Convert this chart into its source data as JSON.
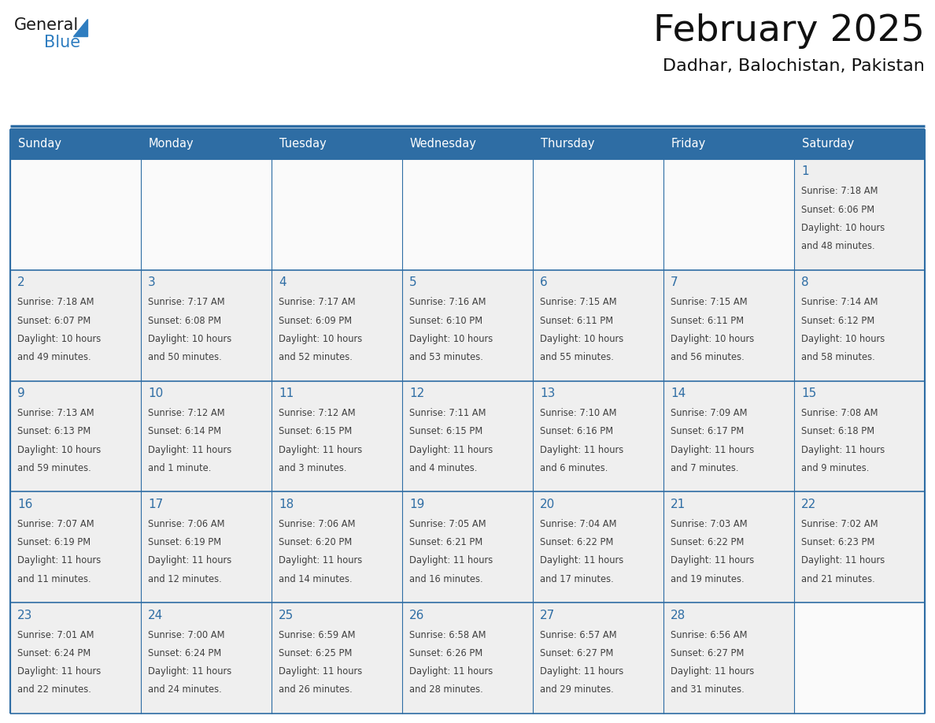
{
  "title": "February 2025",
  "subtitle": "Dadhar, Balochistan, Pakistan",
  "header_bg": "#2E6DA4",
  "header_text": "#FFFFFF",
  "cell_bg": "#EFEFEF",
  "empty_cell_bg": "#FAFAFA",
  "border_color": "#2E6DA4",
  "text_color": "#404040",
  "day_num_color": "#2E6DA4",
  "logo_text_color": "#1a1a1a",
  "logo_blue_color": "#2E7DC0",
  "days_of_week": [
    "Sunday",
    "Monday",
    "Tuesday",
    "Wednesday",
    "Thursday",
    "Friday",
    "Saturday"
  ],
  "calendar_data": [
    [
      null,
      null,
      null,
      null,
      null,
      null,
      {
        "day": "1",
        "sunrise": "7:18 AM",
        "sunset": "6:06 PM",
        "daylight": "10 hours",
        "daylight2": "and 48 minutes."
      }
    ],
    [
      {
        "day": "2",
        "sunrise": "7:18 AM",
        "sunset": "6:07 PM",
        "daylight": "10 hours",
        "daylight2": "and 49 minutes."
      },
      {
        "day": "3",
        "sunrise": "7:17 AM",
        "sunset": "6:08 PM",
        "daylight": "10 hours",
        "daylight2": "and 50 minutes."
      },
      {
        "day": "4",
        "sunrise": "7:17 AM",
        "sunset": "6:09 PM",
        "daylight": "10 hours",
        "daylight2": "and 52 minutes."
      },
      {
        "day": "5",
        "sunrise": "7:16 AM",
        "sunset": "6:10 PM",
        "daylight": "10 hours",
        "daylight2": "and 53 minutes."
      },
      {
        "day": "6",
        "sunrise": "7:15 AM",
        "sunset": "6:11 PM",
        "daylight": "10 hours",
        "daylight2": "and 55 minutes."
      },
      {
        "day": "7",
        "sunrise": "7:15 AM",
        "sunset": "6:11 PM",
        "daylight": "10 hours",
        "daylight2": "and 56 minutes."
      },
      {
        "day": "8",
        "sunrise": "7:14 AM",
        "sunset": "6:12 PM",
        "daylight": "10 hours",
        "daylight2": "and 58 minutes."
      }
    ],
    [
      {
        "day": "9",
        "sunrise": "7:13 AM",
        "sunset": "6:13 PM",
        "daylight": "10 hours",
        "daylight2": "and 59 minutes."
      },
      {
        "day": "10",
        "sunrise": "7:12 AM",
        "sunset": "6:14 PM",
        "daylight": "11 hours",
        "daylight2": "and 1 minute."
      },
      {
        "day": "11",
        "sunrise": "7:12 AM",
        "sunset": "6:15 PM",
        "daylight": "11 hours",
        "daylight2": "and 3 minutes."
      },
      {
        "day": "12",
        "sunrise": "7:11 AM",
        "sunset": "6:15 PM",
        "daylight": "11 hours",
        "daylight2": "and 4 minutes."
      },
      {
        "day": "13",
        "sunrise": "7:10 AM",
        "sunset": "6:16 PM",
        "daylight": "11 hours",
        "daylight2": "and 6 minutes."
      },
      {
        "day": "14",
        "sunrise": "7:09 AM",
        "sunset": "6:17 PM",
        "daylight": "11 hours",
        "daylight2": "and 7 minutes."
      },
      {
        "day": "15",
        "sunrise": "7:08 AM",
        "sunset": "6:18 PM",
        "daylight": "11 hours",
        "daylight2": "and 9 minutes."
      }
    ],
    [
      {
        "day": "16",
        "sunrise": "7:07 AM",
        "sunset": "6:19 PM",
        "daylight": "11 hours",
        "daylight2": "and 11 minutes."
      },
      {
        "day": "17",
        "sunrise": "7:06 AM",
        "sunset": "6:19 PM",
        "daylight": "11 hours",
        "daylight2": "and 12 minutes."
      },
      {
        "day": "18",
        "sunrise": "7:06 AM",
        "sunset": "6:20 PM",
        "daylight": "11 hours",
        "daylight2": "and 14 minutes."
      },
      {
        "day": "19",
        "sunrise": "7:05 AM",
        "sunset": "6:21 PM",
        "daylight": "11 hours",
        "daylight2": "and 16 minutes."
      },
      {
        "day": "20",
        "sunrise": "7:04 AM",
        "sunset": "6:22 PM",
        "daylight": "11 hours",
        "daylight2": "and 17 minutes."
      },
      {
        "day": "21",
        "sunrise": "7:03 AM",
        "sunset": "6:22 PM",
        "daylight": "11 hours",
        "daylight2": "and 19 minutes."
      },
      {
        "day": "22",
        "sunrise": "7:02 AM",
        "sunset": "6:23 PM",
        "daylight": "11 hours",
        "daylight2": "and 21 minutes."
      }
    ],
    [
      {
        "day": "23",
        "sunrise": "7:01 AM",
        "sunset": "6:24 PM",
        "daylight": "11 hours",
        "daylight2": "and 22 minutes."
      },
      {
        "day": "24",
        "sunrise": "7:00 AM",
        "sunset": "6:24 PM",
        "daylight": "11 hours",
        "daylight2": "and 24 minutes."
      },
      {
        "day": "25",
        "sunrise": "6:59 AM",
        "sunset": "6:25 PM",
        "daylight": "11 hours",
        "daylight2": "and 26 minutes."
      },
      {
        "day": "26",
        "sunrise": "6:58 AM",
        "sunset": "6:26 PM",
        "daylight": "11 hours",
        "daylight2": "and 28 minutes."
      },
      {
        "day": "27",
        "sunrise": "6:57 AM",
        "sunset": "6:27 PM",
        "daylight": "11 hours",
        "daylight2": "and 29 minutes."
      },
      {
        "day": "28",
        "sunrise": "6:56 AM",
        "sunset": "6:27 PM",
        "daylight": "11 hours",
        "daylight2": "and 31 minutes."
      },
      null
    ]
  ],
  "fig_width": 11.88,
  "fig_height": 9.18,
  "dpi": 100
}
